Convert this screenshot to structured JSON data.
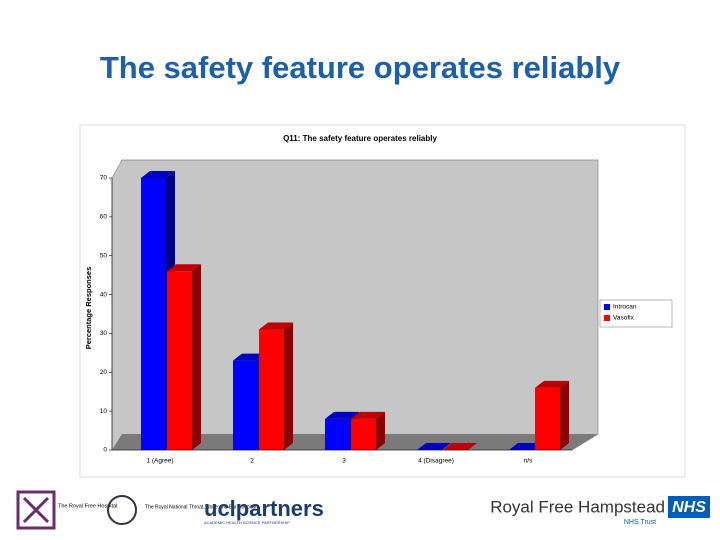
{
  "slide_title": "The safety feature operates reliably",
  "chart_data": {
    "type": "bar3d",
    "title": "Q11: The safety feature operates reliably",
    "y_label": "Percentage Responses",
    "categories": [
      "1 (Agree)",
      "2",
      "3",
      "4 (Disagree)",
      "n/s"
    ],
    "series": [
      {
        "name": "Introcan",
        "color": "#0000ff",
        "values": [
          70,
          23,
          8,
          0,
          0
        ]
      },
      {
        "name": "Vasofix",
        "color": "#ff0000",
        "values": [
          46,
          31,
          8,
          0,
          16
        ]
      }
    ],
    "ylim": [
      0,
      70
    ],
    "yticks": [
      0,
      10,
      20,
      30,
      40,
      50,
      60,
      70
    ],
    "legend": "right"
  },
  "footer": {
    "royal_free": "The Royal Free Hospital",
    "rntne": "The Royal National Throat, Nose and Ear Hospital",
    "ucl": "uclpartners",
    "ucl_sub": "ACADEMIC HEALTH SCIENCE PARTNERSHIP",
    "trust_name": "Royal Free Hampstead",
    "nhs": "NHS",
    "nhs_trust": "NHS Trust"
  }
}
